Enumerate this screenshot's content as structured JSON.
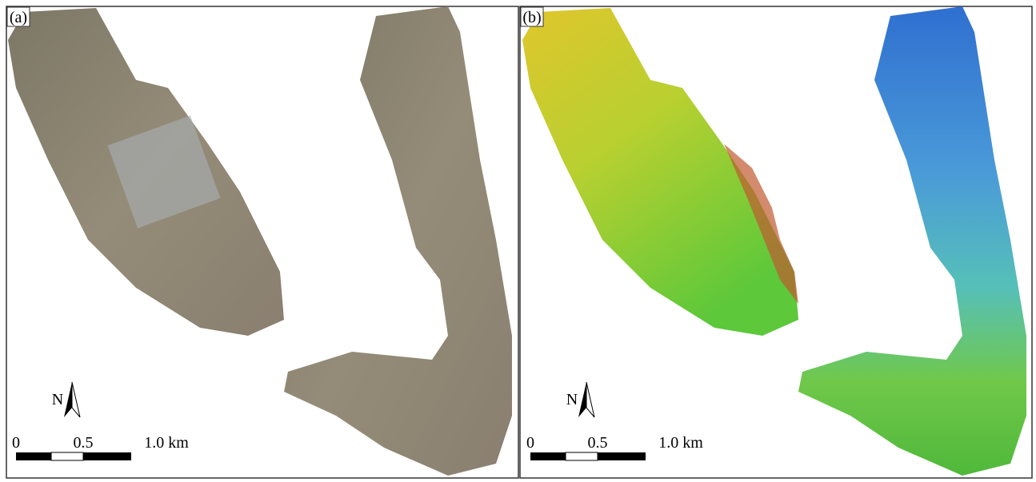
{
  "panels": [
    {
      "label": "(a)",
      "north": "N",
      "scale": [
        "0",
        "0.5",
        "1.0 km"
      ]
    },
    {
      "label": "(b)",
      "north": "N",
      "scale": [
        "0",
        "0.5",
        "1.0 km"
      ]
    }
  ]
}
